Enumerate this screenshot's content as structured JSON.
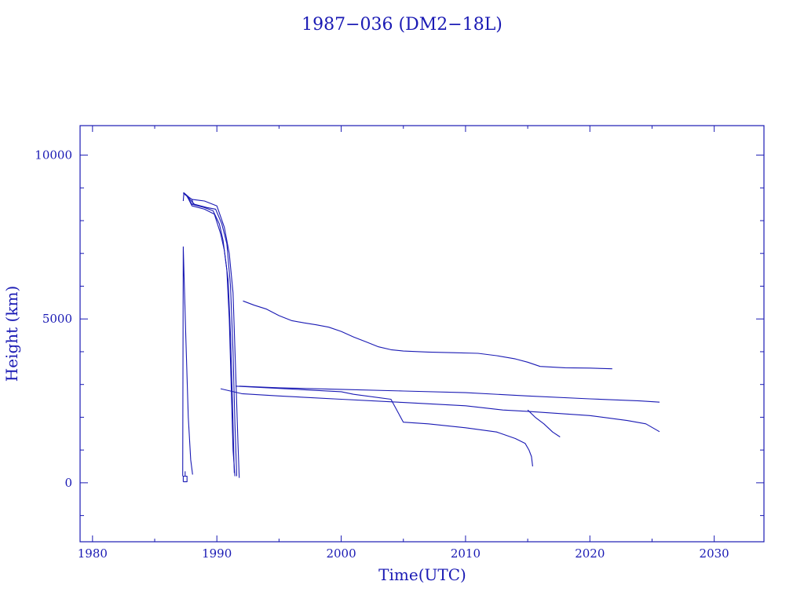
{
  "chart_data": {
    "type": "line",
    "title": "1987−036 (DM2−18L)",
    "xlabel": "Time(UTC)",
    "ylabel": "Height (km)",
    "xlim": [
      1979,
      2034
    ],
    "ylim": [
      -1800,
      10900
    ],
    "xticks": [
      1980,
      1990,
      2000,
      2010,
      2020,
      2030
    ],
    "yticks": [
      0,
      5000,
      10000
    ],
    "tick_labels_x": [
      "1980",
      "1990",
      "2000",
      "2010",
      "2020",
      "2030"
    ],
    "tick_labels_y": [
      "0",
      "5000",
      "10000"
    ],
    "grid": false,
    "color": "#1a1ab4",
    "series": [
      {
        "x": [
          1987.3,
          1987.35,
          1987.8,
          1988.0,
          1988.1
        ],
        "values": [
          8600,
          8850,
          8700,
          8650,
          8500
        ]
      },
      {
        "x": [
          1987.25,
          1987.3,
          1987.5,
          1987.7,
          1987.9,
          1988.05
        ],
        "values": [
          200,
          7200,
          4500,
          2000,
          700,
          250
        ]
      },
      {
        "x": [
          1987.3,
          1987.5,
          1988.0,
          1989.0,
          1989.7,
          1990.2,
          1990.5,
          1990.8,
          1991.0,
          1991.15,
          1991.3,
          1991.45
        ],
        "values": [
          8850,
          8800,
          8500,
          8400,
          8300,
          7900,
          7400,
          6500,
          5000,
          3000,
          1000,
          200
        ]
      },
      {
        "x": [
          1987.3,
          1987.6,
          1988.0,
          1989.0,
          1989.8,
          1990.3,
          1990.6,
          1990.9,
          1991.1,
          1991.25,
          1991.4
        ],
        "values": [
          8850,
          8750,
          8450,
          8350,
          8200,
          7600,
          7100,
          6200,
          4500,
          2500,
          300
        ]
      },
      {
        "x": [
          1987.35,
          1987.7,
          1988.2,
          1989.2,
          1989.9,
          1990.4,
          1990.8,
          1991.1,
          1991.3,
          1991.45,
          1991.6
        ],
        "values": [
          8850,
          8700,
          8500,
          8400,
          8350,
          7900,
          7300,
          6000,
          4000,
          1800,
          200
        ]
      },
      {
        "x": [
          1987.4,
          1988.0,
          1989.0,
          1990.0,
          1990.6,
          1991.0,
          1991.3,
          1991.5,
          1991.7,
          1991.8
        ],
        "values": [
          8800,
          8650,
          8600,
          8450,
          7800,
          7000,
          5800,
          3500,
          1200,
          150
        ]
      },
      {
        "x": [
          1992.1,
          1993.0,
          1994.0,
          1995.0,
          1996.0,
          1997.0,
          1998.0,
          1999.0,
          2000.0,
          2001.0,
          2002.0,
          2003.0,
          2004.0,
          2005.0,
          2007.0,
          2009.0,
          2011.0,
          2012.5,
          2014.0,
          2015.0,
          2016.0,
          2018.0,
          2020.0,
          2021.8
        ],
        "values": [
          5550,
          5420,
          5300,
          5100,
          4950,
          4880,
          4820,
          4750,
          4620,
          4450,
          4300,
          4150,
          4060,
          4020,
          3990,
          3970,
          3950,
          3880,
          3780,
          3680,
          3550,
          3510,
          3500,
          3480
        ]
      },
      {
        "x": [
          1991.8,
          1995.0,
          2000.0,
          2005.0,
          2010.0,
          2015.0,
          2020.0,
          2024.0,
          2025.6
        ],
        "values": [
          2950,
          2900,
          2850,
          2800,
          2750,
          2650,
          2560,
          2500,
          2460
        ]
      },
      {
        "x": [
          1990.3,
          1992.0,
          1995.0,
          2000.0,
          2005.0,
          2010.0,
          2013.0,
          2015.0,
          2020.0,
          2023.0,
          2024.5,
          2025.6
        ],
        "values": [
          2870,
          2720,
          2650,
          2550,
          2450,
          2350,
          2220,
          2180,
          2050,
          1900,
          1800,
          1560
        ]
      },
      {
        "x": [
          1991.5,
          1995.0,
          2000.0,
          2001.0,
          2004.0,
          2005.0,
          2007.0,
          2010.0,
          2012.5,
          2014.0,
          2014.8,
          2015.1,
          2015.3,
          2015.4
        ],
        "values": [
          2950,
          2880,
          2780,
          2700,
          2550,
          1850,
          1800,
          1680,
          1550,
          1350,
          1200,
          1000,
          800,
          500
        ]
      },
      {
        "x": [
          2015.0,
          2015.6,
          2016.3,
          2017.0,
          2017.6
        ],
        "values": [
          2220,
          2000,
          1800,
          1550,
          1400
        ]
      },
      {
        "x": [
          1987.3,
          1987.6,
          1987.6,
          1987.3,
          1987.3
        ],
        "values": [
          30,
          30,
          200,
          200,
          30
        ]
      },
      {
        "x": [
          1987.45,
          1987.45
        ],
        "values": [
          200,
          350
        ]
      }
    ]
  }
}
